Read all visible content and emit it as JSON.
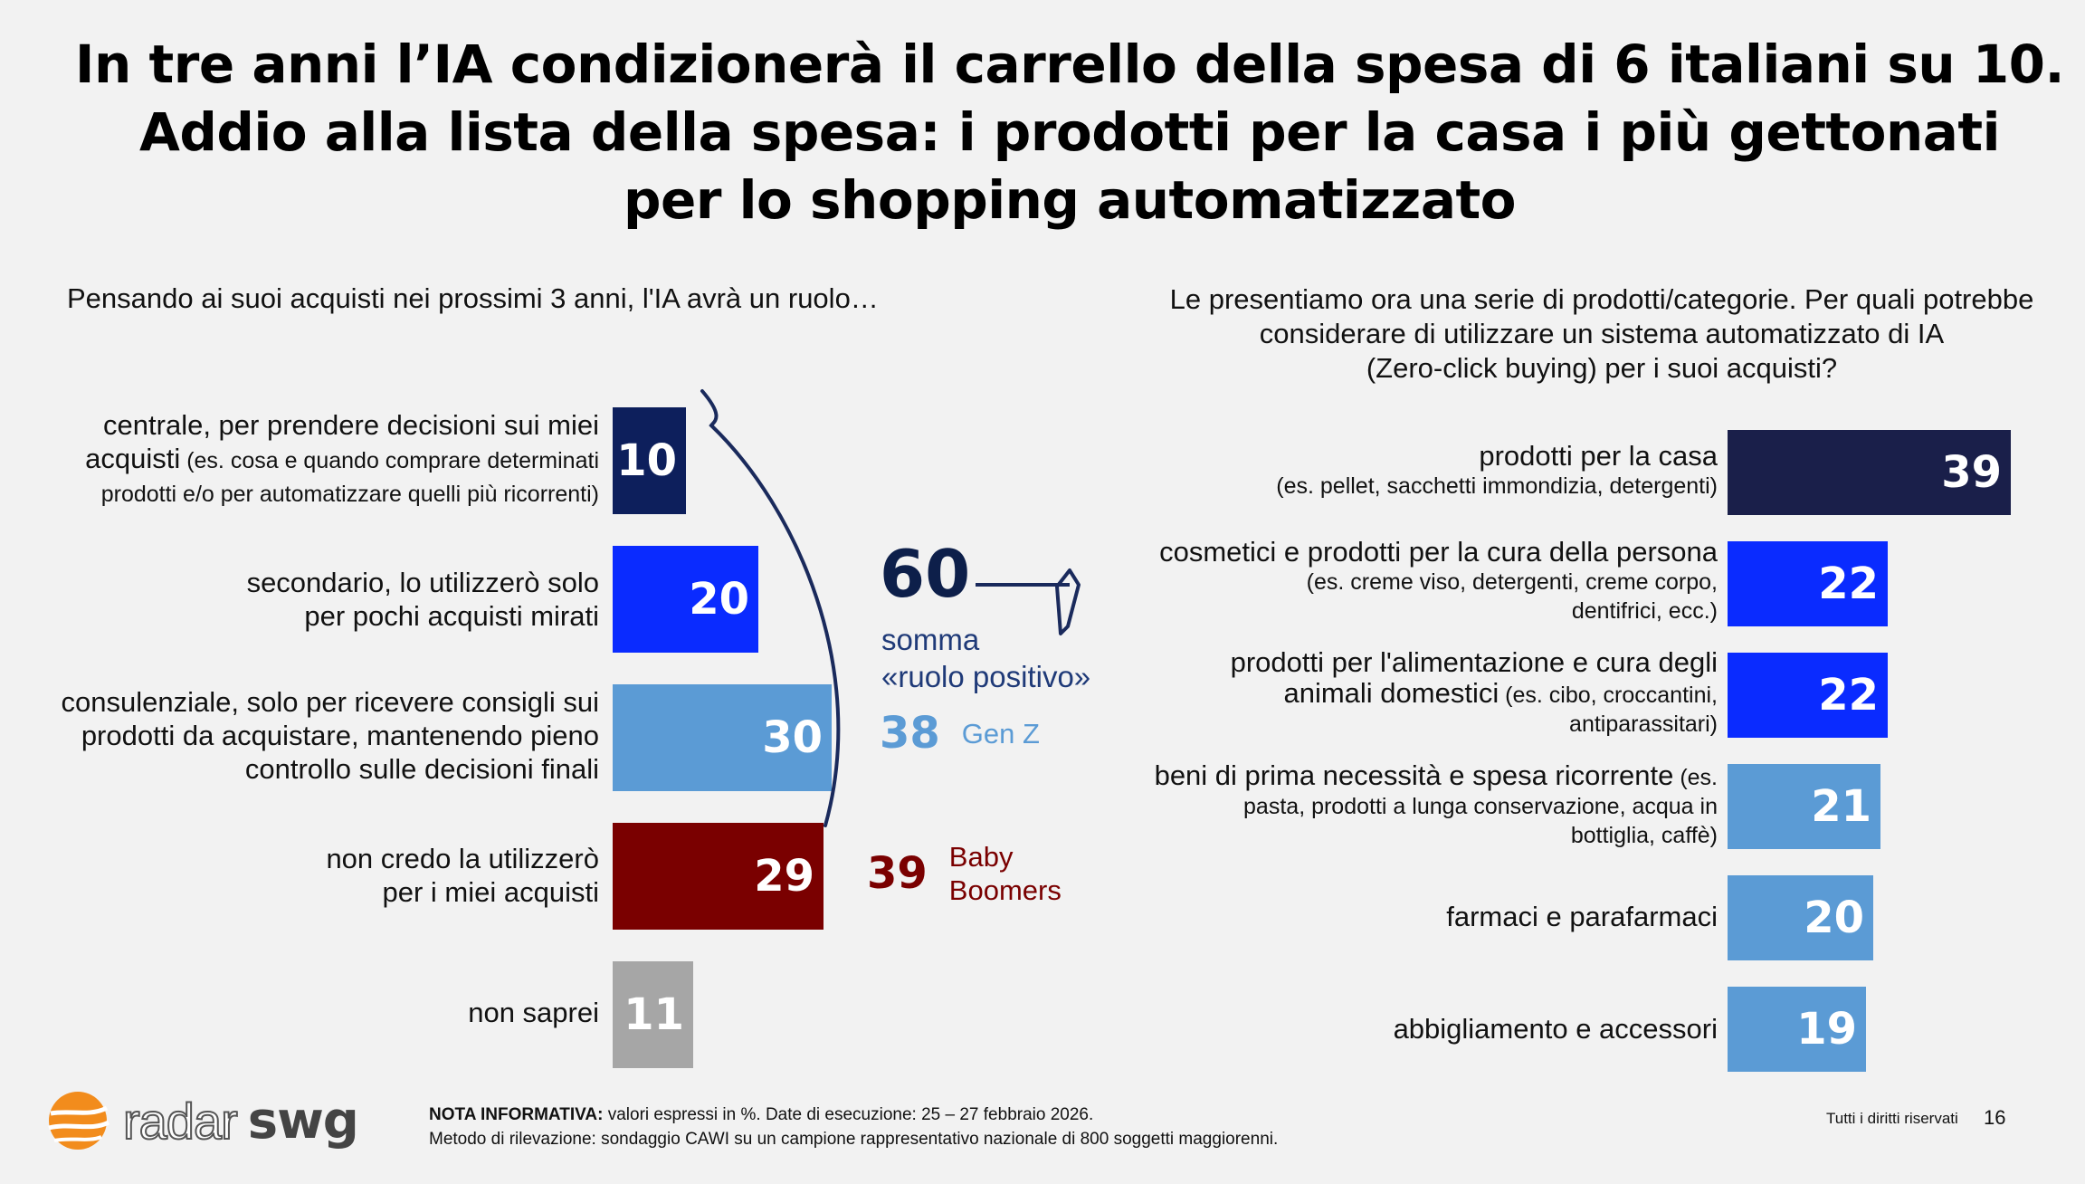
{
  "title": {
    "line1": "In tre anni l’IA condizionerà il carrello della spesa di 6 italiani su 10.",
    "line2": "Addio alla lista della spesa: i prodotti per la casa i più gettonati",
    "line3": "per lo shopping automatizzato"
  },
  "left": {
    "question": "Pensando ai suoi acquisti nei prossimi 3 anni, l'IA avrà un ruolo…",
    "items": [
      {
        "line1": "centrale, per prendere decisioni sui miei",
        "line2a": "acquisti",
        "line2b": " (es. cosa e quando comprare determinati",
        "line3": "prodotti e/o per automatizzare quelli più ricorrenti)",
        "value": "10"
      },
      {
        "line1": "secondario, lo utilizzerò solo",
        "line2": "per pochi acquisti mirati",
        "value": "20"
      },
      {
        "line1": "consulenziale, solo per ricevere consigli sui",
        "line2": "prodotti da acquistare, mantenendo pieno",
        "line3": "controllo sulle decisioni finali",
        "value": "30"
      },
      {
        "line1": "non credo la utilizzerò",
        "line2": "per i miei acquisti",
        "value": "29"
      },
      {
        "line1": "non saprei",
        "value": "11"
      }
    ],
    "sum_value": "60",
    "sum_label_line1": "somma",
    "sum_label_line2": "«ruolo positivo»",
    "genz_value": "38",
    "genz_label": "Gen Z",
    "boomers_value": "39",
    "boomers_label_line1": "Baby",
    "boomers_label_line2": "Boomers"
  },
  "right": {
    "question_line1": "Le presentiamo ora una serie di prodotti/categorie. Per quali potrebbe",
    "question_line2": "considerare di utilizzare un sistema automatizzato di IA",
    "question_line3": "(Zero-click buying) per i suoi acquisti?",
    "items": [
      {
        "main": "prodotti per la casa",
        "sub1": "(es. pellet, sacchetti immondizia, detergenti)",
        "value": "39"
      },
      {
        "main": "cosmetici e prodotti per la cura della persona",
        "sub1": "(es. creme viso, detergenti, creme corpo,",
        "sub2": "dentifrici, ecc.)",
        "value": "22"
      },
      {
        "main": "prodotti per l'alimentazione e cura degli",
        "main2a": "animali domestici",
        "main2b": " (es. cibo, croccantini,",
        "sub2": "antiparassitari)",
        "value": "22"
      },
      {
        "main": "beni di prima necessità e spesa ricorrente",
        "main_b": " (es.",
        "sub1": "pasta, prodotti a lunga conservazione, acqua in",
        "sub2": "bottiglia, caffè)",
        "value": "21"
      },
      {
        "main": "farmaci e parafarmaci",
        "value": "20"
      },
      {
        "main": "abbigliamento e accessori",
        "value": "19"
      }
    ]
  },
  "chart_data": [
    {
      "type": "bar",
      "categories": [
        "centrale, per prendere decisioni sui miei acquisti",
        "secondario, lo utilizzerò solo per pochi acquisti mirati",
        "consulenziale, solo per ricevere consigli sui prodotti da acquistare, mantenendo pieno controllo sulle decisioni finali",
        "non credo la utilizzerò per i miei acquisti",
        "non saprei"
      ],
      "values": [
        10,
        20,
        30,
        29,
        11
      ],
      "colors": [
        "#0d1f5c",
        "#0a2bff",
        "#5b9bd5",
        "#7a0000",
        "#a6a6a6"
      ],
      "title": "Pensando ai suoi acquisti nei prossimi 3 anni, l'IA avrà un ruolo…",
      "orientation": "horizontal"
    },
    {
      "type": "bar",
      "categories": [
        "prodotti per la casa",
        "cosmetici e prodotti per la cura della persona",
        "prodotti per l'alimentazione e cura degli animali domestici",
        "beni di prima necessità e spesa ricorrente",
        "farmaci e parafarmaci",
        "abbigliamento e accessori"
      ],
      "values": [
        39,
        22,
        22,
        21,
        20,
        19
      ],
      "colors": [
        "#1a1f4a",
        "#0a2bff",
        "#0a2bff",
        "#5b9bd5",
        "#5b9bd5",
        "#5b9bd5"
      ],
      "orientation": "horizontal"
    }
  ],
  "colors": {
    "navy": "#0d1f5c",
    "blue": "#0a2bff",
    "lightblue": "#5b9bd5",
    "darkred": "#7a0000",
    "gray": "#a6a6a6",
    "darknavy": "#1a1f4a",
    "logo_orange": "#f28c1c"
  },
  "footer": {
    "note_bold": "NOTA INFORMATIVA:",
    "note_text": " valori espressi in %. Date di esecuzione: 25 – 27 febbraio 2026.",
    "method": "Metodo di rilevazione: sondaggio CAWI su un campione rappresentativo nazionale di 800 soggetti maggiorenni.",
    "rights": "Tutti i diritti riservati",
    "page": "16",
    "logo_radar": "radar",
    "logo_swg": "swg"
  }
}
